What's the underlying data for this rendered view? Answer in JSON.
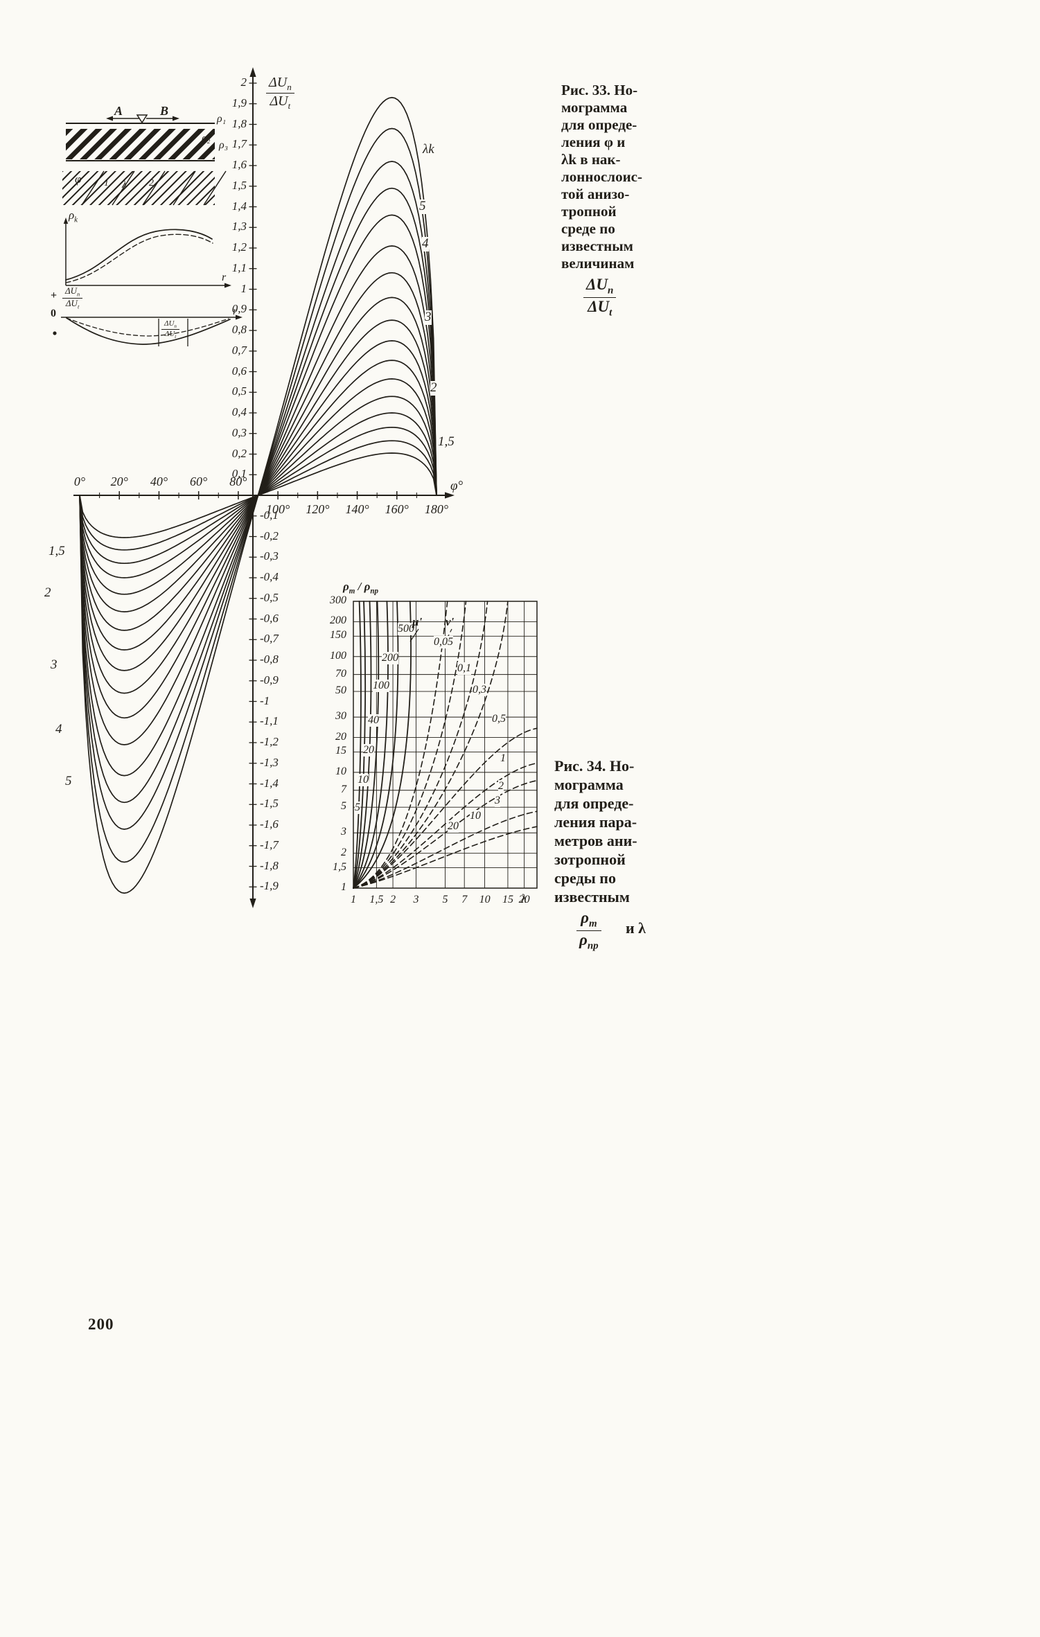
{
  "page": {
    "number": "200"
  },
  "colors": {
    "ink": "#221f19",
    "paper": "#fbfaf5"
  },
  "fig33": {
    "caption_lines": [
      "Рис. 33. Но-",
      "мограмма",
      "для опреде-",
      "ления φ и",
      "λk в нак-",
      "лоннослоис-",
      "той анизо-",
      "тропной",
      "среде по",
      "известным",
      "величинам"
    ],
    "caption_frac": {
      "num_base": "ΔU",
      "num_sub": "n",
      "den_base": "ΔU",
      "den_sub": "t"
    },
    "axis_frac": {
      "num_base": "ΔU",
      "num_sub": "n",
      "den_base": "ΔU",
      "den_sub": "t"
    },
    "x_axis_label": "φ°",
    "x_ticks": [
      "0°",
      "20°",
      "40°",
      "60°",
      "80°",
      "100°",
      "120°",
      "140°",
      "160°",
      "180°"
    ],
    "y_ticks": [
      "2",
      "1,9",
      "1,8",
      "1,7",
      "1,6",
      "1,5",
      "1,4",
      "1,3",
      "1,2",
      "1,1",
      "1",
      "0,9",
      "0,8",
      "0,7",
      "0,6",
      "0,5",
      "0,4",
      "0,3",
      "0,2",
      "0,1",
      "-0,1",
      "-0,2",
      "-0,3",
      "-0,4",
      "-0,5",
      "-0,6",
      "-0,7",
      "-0,8",
      "-0,9",
      "-1",
      "-1,1",
      "-1,2",
      "-1,3",
      "-1,4",
      "-1,5",
      "-1,6",
      "-1,7",
      "-1,8",
      "-1,9"
    ],
    "curve_labels_right": [
      "λk",
      "5",
      "4",
      "3",
      "2",
      "1,5"
    ],
    "curve_labels_left": [
      "1,5",
      "2",
      "3",
      "4",
      "5"
    ],
    "inset": {
      "label_a": "A",
      "label_b": "B",
      "rho1": "ρ₁",
      "rho2": "ρ₂",
      "rho3": "ρ₃",
      "phi": "φ",
      "layer1": "1",
      "lambda": "λ",
      "layer2": "2",
      "rho_base": "ρ",
      "rho_sub": "k",
      "r_label1": "r",
      "r_label2": "r",
      "plus": "+",
      "zero": "0",
      "frac1": {
        "num_base": "ΔU",
        "num_sub": "n",
        "den_base": "ΔU",
        "den_sub": "t"
      },
      "frac2": {
        "num_base": "ΔU",
        "num_sub": "n",
        "den_base": "ΔU",
        "den_sub": "t"
      }
    }
  },
  "fig34": {
    "caption_lines": [
      "Рис. 34. Но-",
      "мограмма",
      "для опреде-",
      "ления пара-",
      "метров ани-",
      "зотропной",
      "среды по",
      "известным"
    ],
    "caption_frac": {
      "num_base": "ρ",
      "num_sub": "m",
      "den_base": "ρ",
      "den_sub": "пр"
    },
    "caption_tail": "и λ",
    "axis_title": {
      "a_base": "ρ",
      "a_sub": "m",
      "sep": " / ",
      "b_base": "ρ",
      "b_sub": "пр"
    },
    "x_axis_label": "λ",
    "x_ticks": [
      "1",
      "1,5",
      "2",
      "3",
      "5",
      "7",
      "10",
      "15",
      "20"
    ],
    "y_ticks": [
      "300",
      "200",
      "150",
      "100",
      "70",
      "50",
      "30",
      "20",
      "15",
      "10",
      "7",
      "5",
      "3",
      "2",
      "1,5",
      "1"
    ],
    "mu_label": "μ'",
    "nu_label": "ν'",
    "mu_curve_labels": [
      "500",
      "200",
      "100",
      "40",
      "20",
      "10",
      "5"
    ],
    "nu_curve_labels": [
      "0,05",
      "0,1",
      "0,3",
      "0,5",
      "1",
      "2",
      "3",
      "10",
      "20"
    ]
  },
  "chart_data": [
    {
      "type": "line",
      "title": "Номограмма для определения φ и λk (Рис. 33)",
      "xlabel": "φ°",
      "ylabel": "ΔUn/ΔUt",
      "xlim_deg": [
        0,
        180
      ],
      "ylim": [
        -1.9,
        2
      ],
      "x_ticks_deg": [
        0,
        20,
        40,
        60,
        80,
        100,
        120,
        140,
        160,
        180
      ],
      "y_tick_step": 0.1,
      "curve_parameter": "λk",
      "labeled_amplitudes": {
        "λk": 1.93,
        "5": 1.62,
        "4": 1.49,
        "3": 1.2,
        "2": 0.66,
        "1,5": 0.36
      },
      "curve_amplitudes": [
        1.93,
        1.78,
        1.62,
        1.49,
        1.36,
        1.21,
        1.08,
        0.96,
        0.85,
        0.75,
        0.655,
        0.565,
        0.48,
        0.4,
        0.33,
        0.265,
        0.205
      ],
      "shape_note": "curves are zero at 0°, 90°, 180°; minimum near 22°, maximum near 157°"
    },
    {
      "type": "line",
      "title": "Номограмма для определения параметров анизотропной среды (Рис. 34)",
      "xlabel": "λ",
      "ylabel": "ρm/ρпр",
      "x_scale": "log",
      "y_scale": "log",
      "xlim": [
        1,
        25
      ],
      "ylim": [
        1,
        300
      ],
      "x_ticks": [
        1,
        1.5,
        2,
        3,
        5,
        7,
        10,
        15,
        20
      ],
      "y_ticks": [
        1,
        1.5,
        2,
        3,
        5,
        7,
        10,
        15,
        20,
        30,
        50,
        70,
        100,
        150,
        200,
        300
      ],
      "grid": true,
      "mu_prime_values": [
        500,
        200,
        100,
        40,
        20,
        10,
        5
      ],
      "nu_prime_values": [
        0.05,
        0.1,
        0.3,
        0.5,
        1,
        2,
        3,
        10,
        20
      ]
    }
  ]
}
